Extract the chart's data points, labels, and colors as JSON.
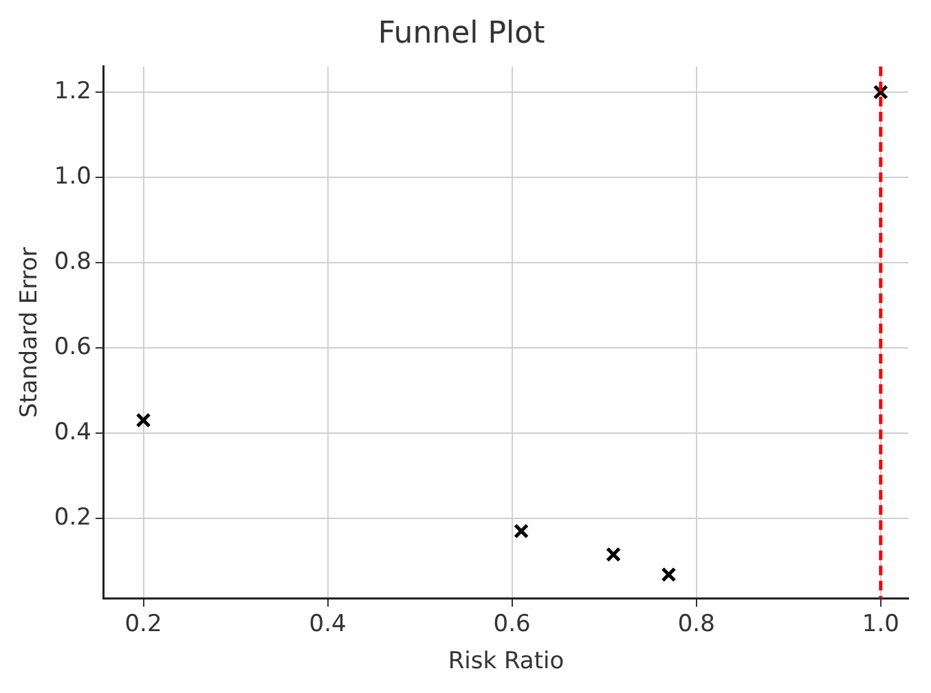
{
  "chart_data": {
    "type": "scatter",
    "title": "Funnel Plot",
    "xlabel": "Risk Ratio",
    "ylabel": "Standard Error",
    "x": [
      0.2,
      0.61,
      0.71,
      0.77,
      1.0
    ],
    "series": [
      {
        "color": "#000000",
        "values": [
          0.43,
          0.17,
          0.115,
          0.068,
          1.2
        ]
      }
    ],
    "marker": "cross",
    "xlim": [
      0.157,
      1.03
    ],
    "xticks": [
      {
        "value": 0.2,
        "label": "0.2"
      },
      {
        "value": 0.4,
        "label": "0.4"
      },
      {
        "value": 0.6,
        "label": "0.6"
      },
      {
        "value": 0.8,
        "label": "0.8"
      },
      {
        "value": 1.0,
        "label": "1.0"
      }
    ],
    "ylim": [
      0.012,
      1.26
    ],
    "yticks": [
      {
        "value": 0.2,
        "label": "0.2"
      },
      {
        "value": 0.4,
        "label": "0.4"
      },
      {
        "value": 0.6,
        "label": "0.6"
      },
      {
        "value": 0.8,
        "label": "0.8"
      },
      {
        "value": 1.0,
        "label": "1.0"
      },
      {
        "value": 1.2,
        "label": "1.2"
      }
    ],
    "ref_lines": [
      {
        "axis": "x",
        "value": 1.0,
        "color": "#ff0000",
        "line_style": "dashed"
      }
    ],
    "grid": true
  }
}
